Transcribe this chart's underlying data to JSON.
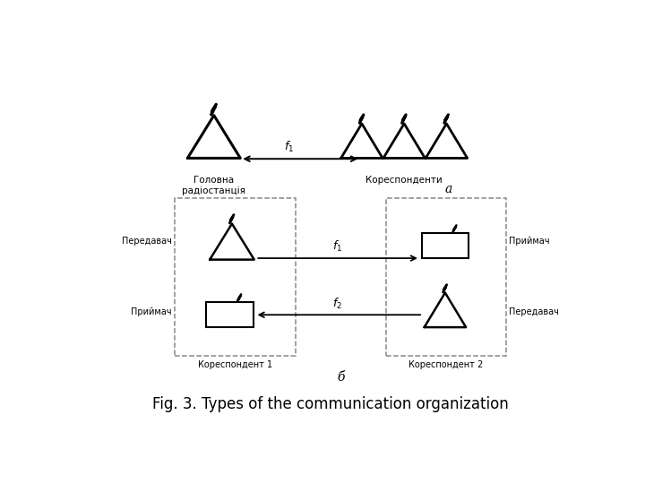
{
  "title": "Fig. 3. Types of the communication organization",
  "title_fontsize": 12,
  "background_color": "#ffffff",
  "label_a": "a",
  "label_b": "б",
  "text_golovna": "Головна\nрадіостанція",
  "text_korespondenty": "Кореспонденти",
  "text_peredavach_left": "Передавач",
  "text_priymach_left": "Приймач",
  "text_priymach_right": "Приймач",
  "text_peredavach_right": "Передавач",
  "text_korespondent1": "Кореспондент 1",
  "text_korespondent2": "Кореспондент 2"
}
